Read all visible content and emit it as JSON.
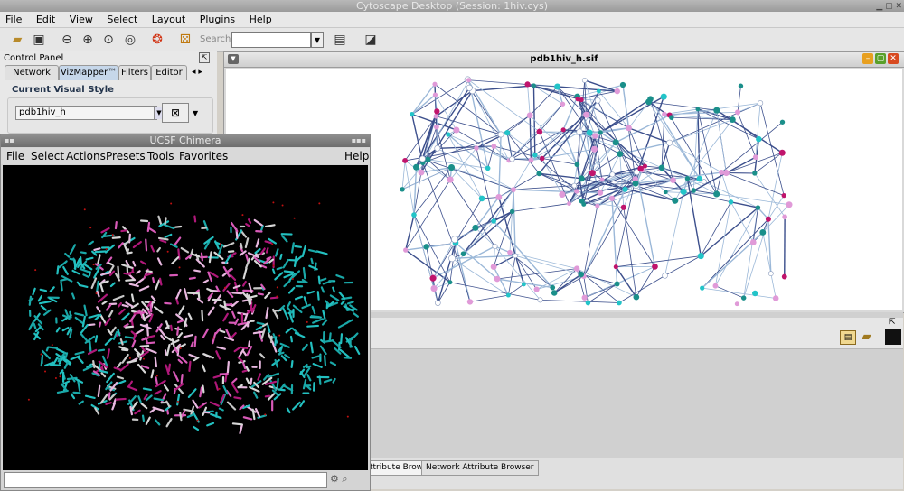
{
  "app": {
    "window_title": "Cytoscape Desktop (Session: 1hiv.cys)",
    "menu": [
      "File",
      "Edit",
      "View",
      "Select",
      "Layout",
      "Plugins",
      "Help"
    ]
  },
  "toolbar": {
    "search_label": "Search:",
    "search_value": "",
    "icons": [
      "open-folder-icon",
      "save-icon",
      "zoom-out-icon",
      "zoom-in-icon",
      "zoom-selected-icon",
      "zoom-fit-icon",
      "lifebuoy-icon",
      "layout-icon",
      "table-icon",
      "vizmapper-icon"
    ]
  },
  "control_panel": {
    "title": "Control Panel",
    "tabs": [
      "Network",
      "VizMapper™",
      "Filters",
      "Editor"
    ],
    "active_tab": "VizMapper™",
    "current_visual_style_label": "Current Visual Style",
    "style_value": "pdb1hiv_h"
  },
  "network_view": {
    "title": "pdb1hiv_h.sif",
    "colors": {
      "teal": "#1a8f8a",
      "cyan": "#22c4c8",
      "magenta": "#c0146c",
      "pink": "#e09ad8",
      "edge": "#3c4f8c",
      "edge_light": "#9bb8d8"
    }
  },
  "data_panel": {
    "tabs": [
      "Node Attribute Browser",
      "Network Attribute Browser"
    ],
    "tab0_visible_text": "ttribute Browser"
  },
  "chimera": {
    "title": "UCSF Chimera",
    "menu": [
      "File",
      "Select",
      "Actions",
      "Presets",
      "Tools",
      "Favorites",
      "Help"
    ],
    "command_value": ""
  }
}
